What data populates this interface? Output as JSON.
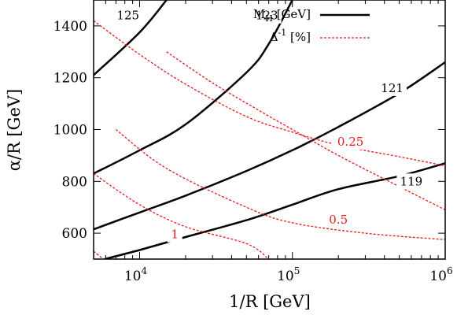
{
  "chart_data": {
    "type": "line",
    "xlabel": "1/R [GeV]",
    "ylabel": "α/R [GeV]",
    "x_scale": "log",
    "xlim": [
      5000,
      1000000
    ],
    "ylim": [
      500,
      1500
    ],
    "x_ticks": [
      {
        "value": 10000,
        "base": "10",
        "exp": "4"
      },
      {
        "value": 100000,
        "base": "10",
        "exp": "5"
      },
      {
        "value": 1000000,
        "base": "10",
        "exp": "6"
      }
    ],
    "y_ticks": [
      600,
      800,
      1000,
      1200,
      1400
    ],
    "legend": {
      "position": "top-right",
      "entries": [
        {
          "label": "M_H [GeV]",
          "style": "solid",
          "color": "#000000"
        },
        {
          "label": "Δ^-1 [%]",
          "style": "dashed",
          "color": "#e41a1c"
        }
      ]
    },
    "series": [
      {
        "group": "M_H",
        "label": "119",
        "points": [
          [
            5900,
            500
          ],
          [
            10000,
            535
          ],
          [
            20000,
            585
          ],
          [
            50000,
            650
          ],
          [
            100000,
            710
          ],
          [
            200000,
            770
          ],
          [
            500000,
            820
          ],
          [
            1000000,
            870
          ]
        ],
        "label_at": [
          600000,
          800
        ]
      },
      {
        "group": "M_H",
        "label": "121",
        "points": [
          [
            5000,
            615
          ],
          [
            10000,
            680
          ],
          [
            20000,
            745
          ],
          [
            50000,
            840
          ],
          [
            100000,
            920
          ],
          [
            200000,
            1010
          ],
          [
            500000,
            1140
          ],
          [
            1000000,
            1260
          ]
        ],
        "label_at": [
          450000,
          1160
        ]
      },
      {
        "group": "M_H",
        "label": "123",
        "points": [
          [
            5000,
            830
          ],
          [
            10000,
            920
          ],
          [
            20000,
            1020
          ],
          [
            50000,
            1220
          ],
          [
            70000,
            1330
          ],
          [
            100000,
            1500
          ]
        ],
        "label_at": [
          68000,
          1440
        ]
      },
      {
        "group": "M_H",
        "label": "125",
        "points": [
          [
            5000,
            1210
          ],
          [
            10000,
            1375
          ],
          [
            15000,
            1500
          ]
        ],
        "label_at": [
          8400,
          1440
        ]
      },
      {
        "group": "Delta",
        "label": "0.25",
        "points": [
          [
            5000,
            1420
          ],
          [
            10000,
            1290
          ],
          [
            20000,
            1175
          ],
          [
            50000,
            1050
          ],
          [
            100000,
            990
          ],
          [
            200000,
            940
          ],
          [
            500000,
            895
          ],
          [
            1000000,
            860
          ]
        ],
        "label_at": [
          240000,
          953
        ]
      },
      {
        "group": "Delta",
        "label": "0.5",
        "points": [
          [
            5000,
            830
          ],
          [
            10000,
            710
          ],
          [
            20000,
            625
          ],
          [
            50000,
            560
          ],
          [
            70000,
            500
          ]
        ],
        "label_at": [
          200000,
          652
        ]
      },
      {
        "group": "Delta",
        "label": "1",
        "points": [
          [
            5000,
            530
          ],
          [
            5800,
            500
          ]
        ],
        "label_at": [
          17000,
          595
        ]
      },
      {
        "group": "Delta",
        "label": "",
        "points": [
          [
            15000,
            1300
          ],
          [
            30000,
            1180
          ],
          [
            60000,
            1075
          ],
          [
            100000,
            1000
          ],
          [
            200000,
            900
          ],
          [
            500000,
            780
          ],
          [
            1000000,
            690
          ]
        ],
        "label_at": null
      },
      {
        "group": "Delta",
        "label": "",
        "points": [
          [
            7000,
            1000
          ],
          [
            15000,
            850
          ],
          [
            50000,
            700
          ],
          [
            100000,
            640
          ],
          [
            300000,
            600
          ],
          [
            1000000,
            575
          ]
        ],
        "label_at": null
      }
    ]
  }
}
